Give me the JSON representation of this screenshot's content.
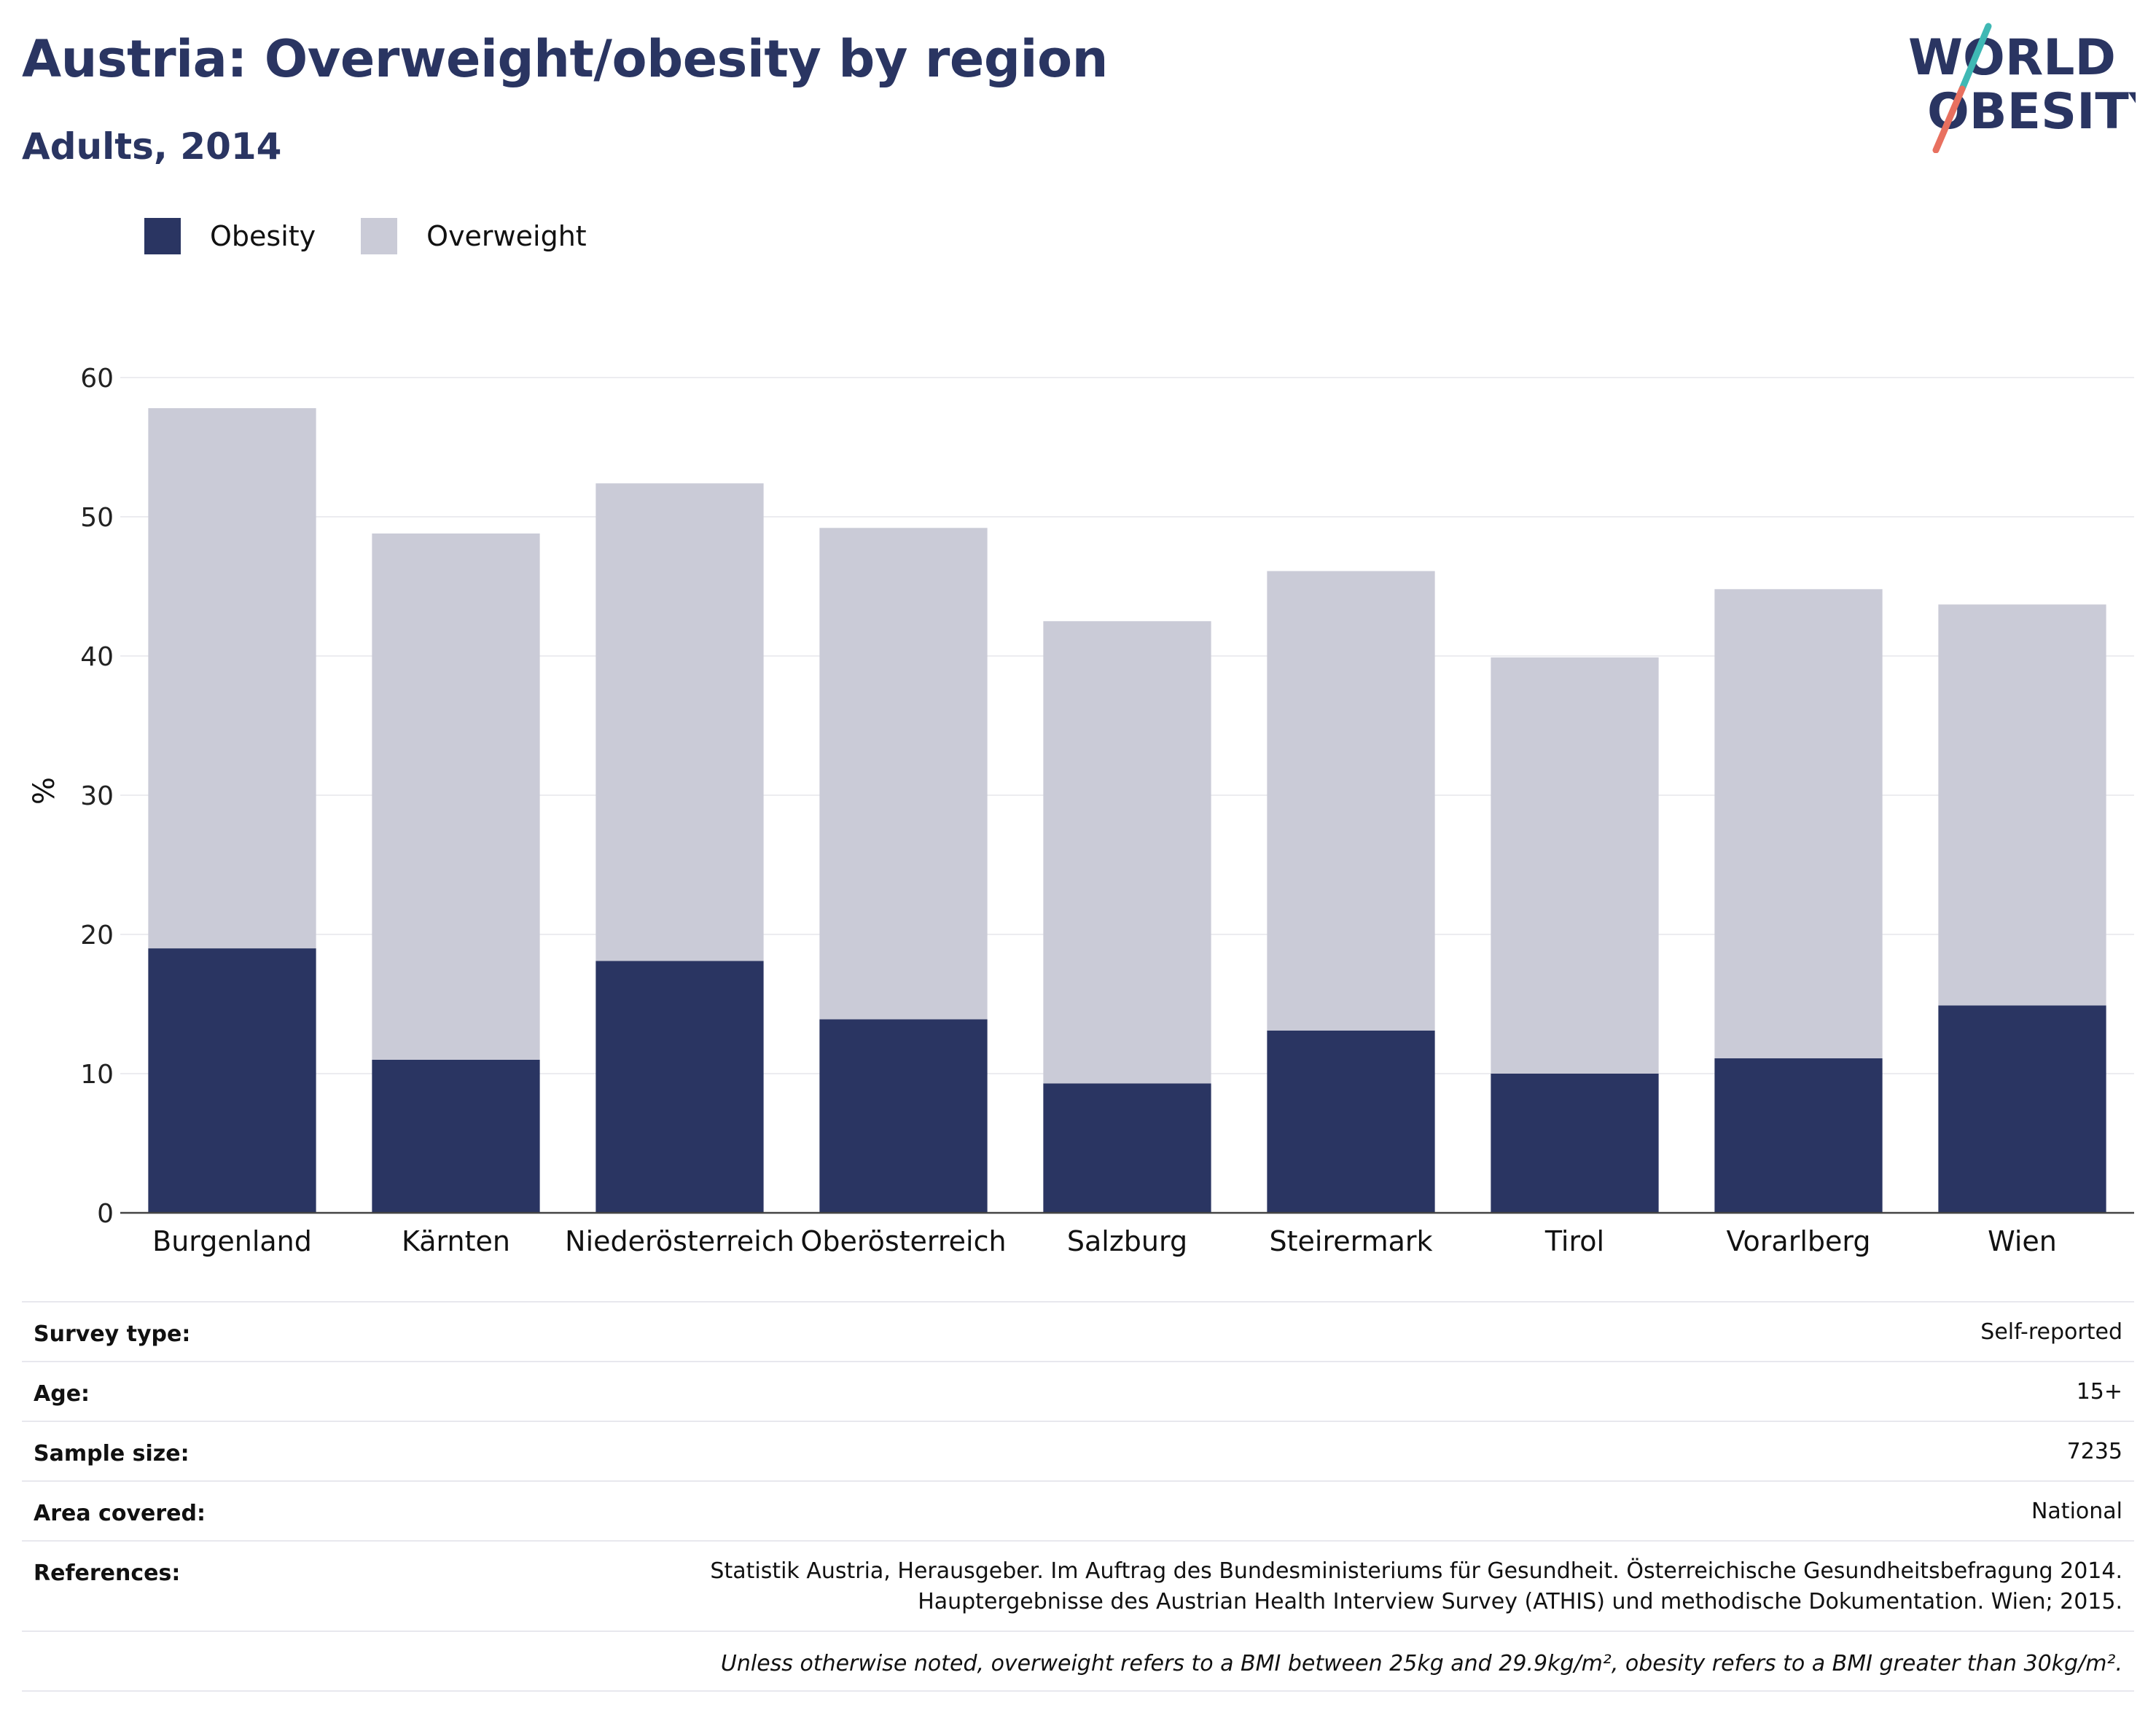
{
  "header": {
    "title": "Austria: Overweight/obesity by region",
    "subtitle": "Adults, 2014"
  },
  "logo": {
    "line1": "WORLD",
    "line2": "OBESITY",
    "colors": {
      "text": "#2a3562",
      "slash_top": "#3fb8b4",
      "slash_bottom": "#e8705f"
    }
  },
  "chart_data": {
    "type": "bar",
    "stacked": true,
    "categories": [
      "Burgenland",
      "Kärnten",
      "Niederösterreich",
      "Oberösterreich",
      "Salzburg",
      "Steirermark",
      "Tirol",
      "Vorarlberg",
      "Wien"
    ],
    "series": [
      {
        "name": "Obesity",
        "color": "#2a3562",
        "values": [
          19.0,
          11.0,
          18.1,
          13.9,
          9.3,
          13.1,
          10.0,
          11.1,
          14.9
        ]
      },
      {
        "name": "Overweight",
        "color": "#cacbd7",
        "values": [
          38.8,
          37.8,
          34.3,
          35.3,
          33.2,
          33.0,
          29.9,
          33.7,
          28.8
        ]
      }
    ],
    "ylabel": "%",
    "xlabel": "",
    "ylim": [
      0,
      60
    ],
    "yticks": [
      0,
      10,
      20,
      30,
      40,
      50,
      60
    ],
    "grid": true,
    "legend_position": "top-left"
  },
  "meta": {
    "survey_type": {
      "label": "Survey type:",
      "value": "Self-reported"
    },
    "age": {
      "label": "Age:",
      "value": "15+"
    },
    "sample_size": {
      "label": "Sample size:",
      "value": "7235"
    },
    "area_covered": {
      "label": "Area covered:",
      "value": "National"
    },
    "references": {
      "label": "References:",
      "line1": "Statistik Austria, Herausgeber. Im Auftrag des Bundesministeriums für Gesundheit. Österreichische Gesundheitsbefragung 2014.",
      "line2": "Hauptergebnisse des Austrian Health Interview Survey (ATHIS) und methodische Dokumentation. Wien; 2015."
    },
    "note": "Unless otherwise noted, overweight refers to a BMI between 25kg and 29.9kg/m², obesity refers to a BMI greater than 30kg/m²."
  }
}
